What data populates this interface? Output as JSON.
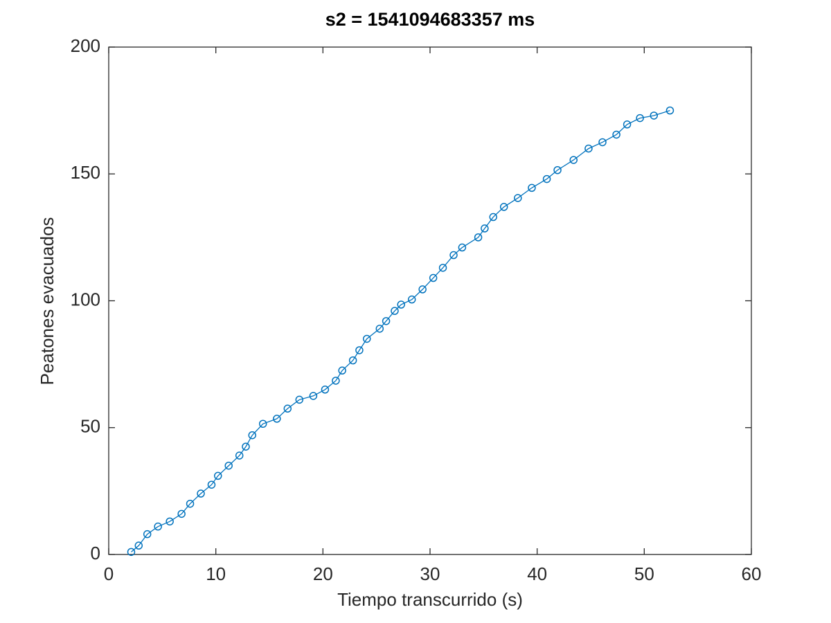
{
  "chart_data": {
    "type": "line",
    "title": "s2 = 1541094683357 ms",
    "x_label": "Tiempo transcurrido (s)",
    "y_label": "Peatones evacuados",
    "xlim": [
      0,
      60
    ],
    "xticks": [
      0,
      10,
      20,
      30,
      40,
      50,
      60
    ],
    "ylim": [
      0,
      200
    ],
    "yticks": [
      0,
      50,
      100,
      150,
      200
    ],
    "marker": "circle",
    "series": [
      {
        "color": "#0072bd",
        "x": [
          2.1,
          2.8,
          3.6,
          4.6,
          5.7,
          6.8,
          7.6,
          8.6,
          9.6,
          10.2,
          11.2,
          12.2,
          12.8,
          13.4,
          14.4,
          15.7,
          16.7,
          17.8,
          19.1,
          20.2,
          21.2,
          21.8,
          22.8,
          23.4,
          24.1,
          25.3,
          25.9,
          26.7,
          27.3,
          28.3,
          29.3,
          30.3,
          31.2,
          32.2,
          33.0,
          34.5,
          35.1,
          35.9,
          36.9,
          38.2,
          39.5,
          40.9,
          41.9,
          43.4,
          44.8,
          46.1,
          47.4,
          48.4,
          49.6,
          50.9,
          52.4
        ],
        "values": [
          1,
          3.5,
          8,
          11,
          13,
          16,
          20,
          24,
          27.5,
          31,
          35,
          39,
          42.5,
          47,
          51.5,
          53.5,
          57.5,
          61,
          62.5,
          65,
          68.5,
          72.5,
          76.5,
          80.5,
          85,
          89,
          92,
          96,
          98.5,
          100.5,
          104.5,
          109,
          113,
          118,
          121,
          125,
          128.5,
          133,
          137,
          140.5,
          144.5,
          148,
          151.5,
          155.5,
          160,
          162.5,
          165.5,
          169.5,
          172,
          173,
          175
        ]
      }
    ]
  }
}
